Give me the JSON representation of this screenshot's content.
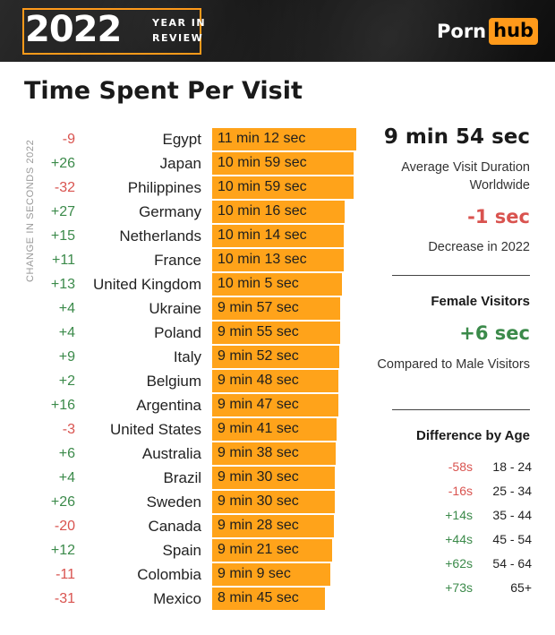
{
  "header": {
    "year": "2022",
    "subtitle_line1": "YEAR IN",
    "subtitle_line2": "REVIEW",
    "logo_left": "Porn",
    "logo_right": "hub",
    "accent_color": "#ff9a1a"
  },
  "title": "Time Spent Per Visit",
  "vertical_label": "CHANGE IN SECONDS 2022",
  "chart_data": {
    "type": "bar",
    "orientation": "horizontal",
    "title": "Time Spent Per Visit",
    "xlabel": "",
    "ylabel": "",
    "bar_color": "#ffa31a",
    "categories": [
      "Egypt",
      "Japan",
      "Philippines",
      "Germany",
      "Netherlands",
      "France",
      "United Kingdom",
      "Ukraine",
      "Poland",
      "Italy",
      "Belgium",
      "Argentina",
      "United States",
      "Australia",
      "Brazil",
      "Sweden",
      "Canada",
      "Spain",
      "Colombia",
      "Mexico"
    ],
    "labels": [
      "11 min 12 sec",
      "10 min 59 sec",
      "10 min 59 sec",
      "10 min 16 sec",
      "10 min 14 sec",
      "10 min 13 sec",
      "10 min 5 sec",
      "9 min 57 sec",
      "9 min 55 sec",
      "9 min 52 sec",
      "9 min 48 sec",
      "9 min 47 sec",
      "9 min 41 sec",
      "9 min 38 sec",
      "9 min 30 sec",
      "9 min 30 sec",
      "9 min 28 sec",
      "9 min 21 sec",
      "9 min 9 sec",
      "8 min 45 sec"
    ],
    "values_seconds": [
      672,
      659,
      659,
      616,
      614,
      613,
      605,
      597,
      595,
      592,
      588,
      587,
      581,
      578,
      570,
      570,
      568,
      561,
      549,
      525
    ],
    "change_labels": [
      "-9",
      "+26",
      "-32",
      "+27",
      "+15",
      "+11",
      "+13",
      "+4",
      "+4",
      "+9",
      "+2",
      "+16",
      "-3",
      "+6",
      "+4",
      "+26",
      "-20",
      "+12",
      "-11",
      "-31"
    ]
  },
  "summary": {
    "avg_value": "9 min 54 sec",
    "avg_label": "Average Visit Duration Worldwide",
    "decrease_value": "-1 sec",
    "decrease_label": "Decrease in 2022",
    "female_title": "Female Visitors",
    "female_value": "+6 sec",
    "female_label": "Compared to Male Visitors",
    "age_title": "Difference by Age",
    "age_rows": [
      {
        "diff": "-58s",
        "age": "18 - 24"
      },
      {
        "diff": "-16s",
        "age": "25 - 34"
      },
      {
        "diff": "+14s",
        "age": "35 - 44"
      },
      {
        "diff": "+44s",
        "age": "45 - 54"
      },
      {
        "diff": "+62s",
        "age": "54 - 64"
      },
      {
        "diff": "+73s",
        "age": "65+"
      }
    ]
  }
}
